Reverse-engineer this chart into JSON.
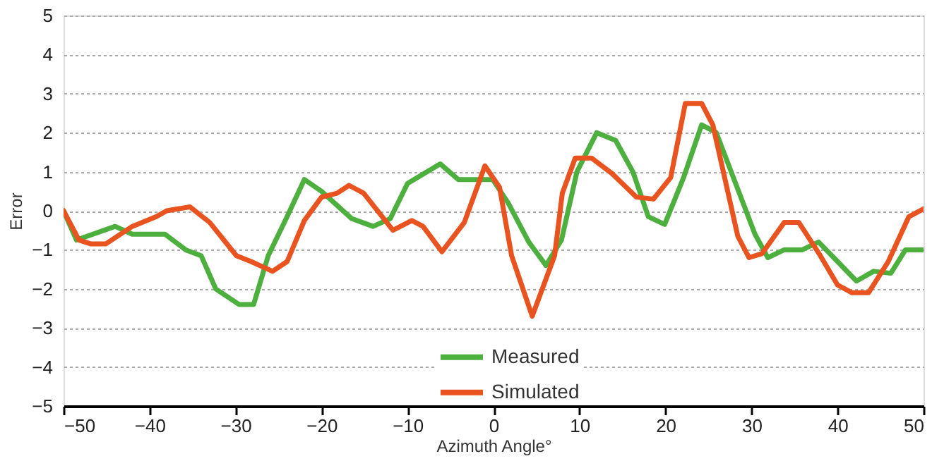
{
  "chart_data": {
    "type": "line",
    "xlabel": "Azimuth Angle°",
    "ylabel": "Error",
    "xlim": [
      -50,
      50
    ],
    "xticks": [
      -50,
      -40,
      -30,
      -20,
      -10,
      0,
      10,
      20,
      30,
      40,
      50
    ],
    "ylim": [
      -5,
      5
    ],
    "yticks": [
      -5,
      -4,
      -3,
      -2,
      -1,
      0,
      1,
      2,
      3,
      4,
      5
    ],
    "grid": "y",
    "legend": "bottom",
    "marker": "none",
    "line_style": "solid",
    "series": [
      {
        "name": "Measured",
        "color": "#4caf3e",
        "x": [
          -50,
          -48.5,
          -44,
          -42,
          -38.2,
          -35.8,
          -34,
          -32.3,
          -29.6,
          -27.9,
          -26.2,
          -24,
          -22,
          -20,
          -16.5,
          -14,
          -12,
          -10,
          -6.2,
          -4.1,
          -0.1,
          1.7,
          4.1,
          6.1,
          7.9,
          9.7,
          12,
          14.2,
          16.2,
          18,
          19.9,
          22.1,
          24.2,
          25.9,
          30.4,
          31.9,
          33.8,
          35.9,
          37.8,
          40,
          42.2,
          44.2,
          46.2,
          47.9,
          50
        ],
        "values": [
          0,
          -0.75,
          -0.4,
          -0.6,
          -0.6,
          -1.0,
          -1.15,
          -2.0,
          -2.4,
          -2.4,
          -1.15,
          -0.15,
          0.8,
          0.5,
          -0.2,
          -0.4,
          -0.2,
          0.7,
          1.2,
          0.8,
          0.8,
          0.2,
          -0.8,
          -1.4,
          -0.75,
          1.0,
          2.0,
          1.8,
          1.0,
          -0.15,
          -0.35,
          0.85,
          2.2,
          2.0,
          -0.6,
          -1.2,
          -1.0,
          -1.0,
          -0.8,
          -1.3,
          -1.8,
          -1.55,
          -1.6,
          -1.0,
          -1.0
        ]
      },
      {
        "name": "Simulated",
        "color": "#e8531f",
        "x": [
          -50,
          -48.2,
          -46.8,
          -45.1,
          -42,
          -39.2,
          -38,
          -35.3,
          -33,
          -29.9,
          -28.2,
          -25.7,
          -24,
          -22,
          -20,
          -18.2,
          -16.8,
          -15.1,
          -11.7,
          -9.5,
          -8.2,
          -6,
          -3.4,
          -1,
          0.7,
          2.1,
          4.5,
          7.1,
          8,
          9.5,
          11.4,
          13.8,
          16.6,
          18.6,
          20.6,
          22.3,
          24.2,
          25.5,
          28.4,
          29.7,
          31.2,
          33.8,
          35.5,
          38,
          40,
          41.7,
          43.6,
          45.9,
          48.3,
          50
        ],
        "values": [
          0,
          -0.75,
          -0.85,
          -0.85,
          -0.4,
          -0.15,
          0,
          0.1,
          -0.3,
          -1.15,
          -1.3,
          -1.55,
          -1.3,
          -0.25,
          0.35,
          0.45,
          0.65,
          0.45,
          -0.5,
          -0.25,
          -0.4,
          -1.05,
          -0.3,
          1.15,
          0.6,
          -1.15,
          -2.7,
          -1.15,
          0.45,
          1.35,
          1.35,
          0.95,
          0.35,
          0.3,
          0.85,
          2.75,
          2.75,
          2.2,
          -0.65,
          -1.2,
          -1.1,
          -0.3,
          -0.3,
          -1.15,
          -1.9,
          -2.1,
          -2.1,
          -1.3,
          -0.15,
          0.05
        ]
      }
    ]
  }
}
